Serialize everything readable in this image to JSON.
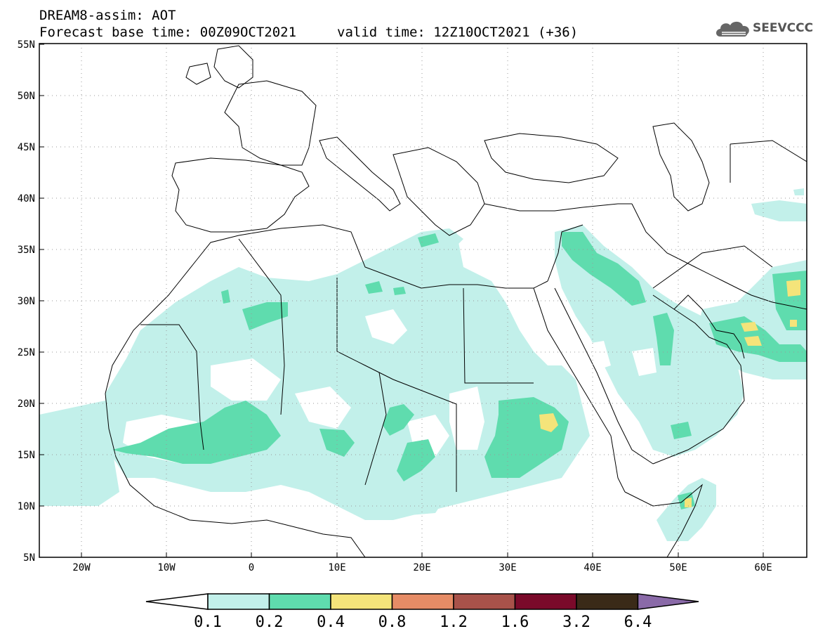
{
  "header": {
    "line1": "DREAM8-assim: AOT",
    "base_time": "Forecast base time: 00Z09OCT2021",
    "valid_time": "valid time: 12Z10OCT2021 (+36)"
  },
  "logo": {
    "text": "SEEVCCC",
    "icon": "cloud-logo-icon"
  },
  "map": {
    "lon_range": [
      -25,
      65
    ],
    "lat_range": [
      5,
      55
    ],
    "y_ticks": [
      "55N",
      "50N",
      "45N",
      "40N",
      "35N",
      "30N",
      "25N",
      "20N",
      "15N",
      "10N",
      "5N"
    ],
    "x_ticks": [
      "20W",
      "10W",
      "0",
      "10E",
      "20E",
      "30E",
      "40E",
      "50E",
      "60E"
    ],
    "grid": "dotted"
  },
  "colorbar": {
    "labels": [
      "0.1",
      "0.2",
      "0.4",
      "0.8",
      "1.2",
      "1.6",
      "3.2",
      "6.4"
    ],
    "colors": [
      "#ffffff",
      "#c2f0ea",
      "#5fdcae",
      "#f4e47a",
      "#e68c66",
      "#a8524a",
      "#7a0a2a",
      "#3a2a18",
      "#8a6aa8"
    ]
  },
  "colors": {
    "level1": "#c2f0ea",
    "level2": "#5fdcae",
    "level3": "#f4e47a"
  }
}
